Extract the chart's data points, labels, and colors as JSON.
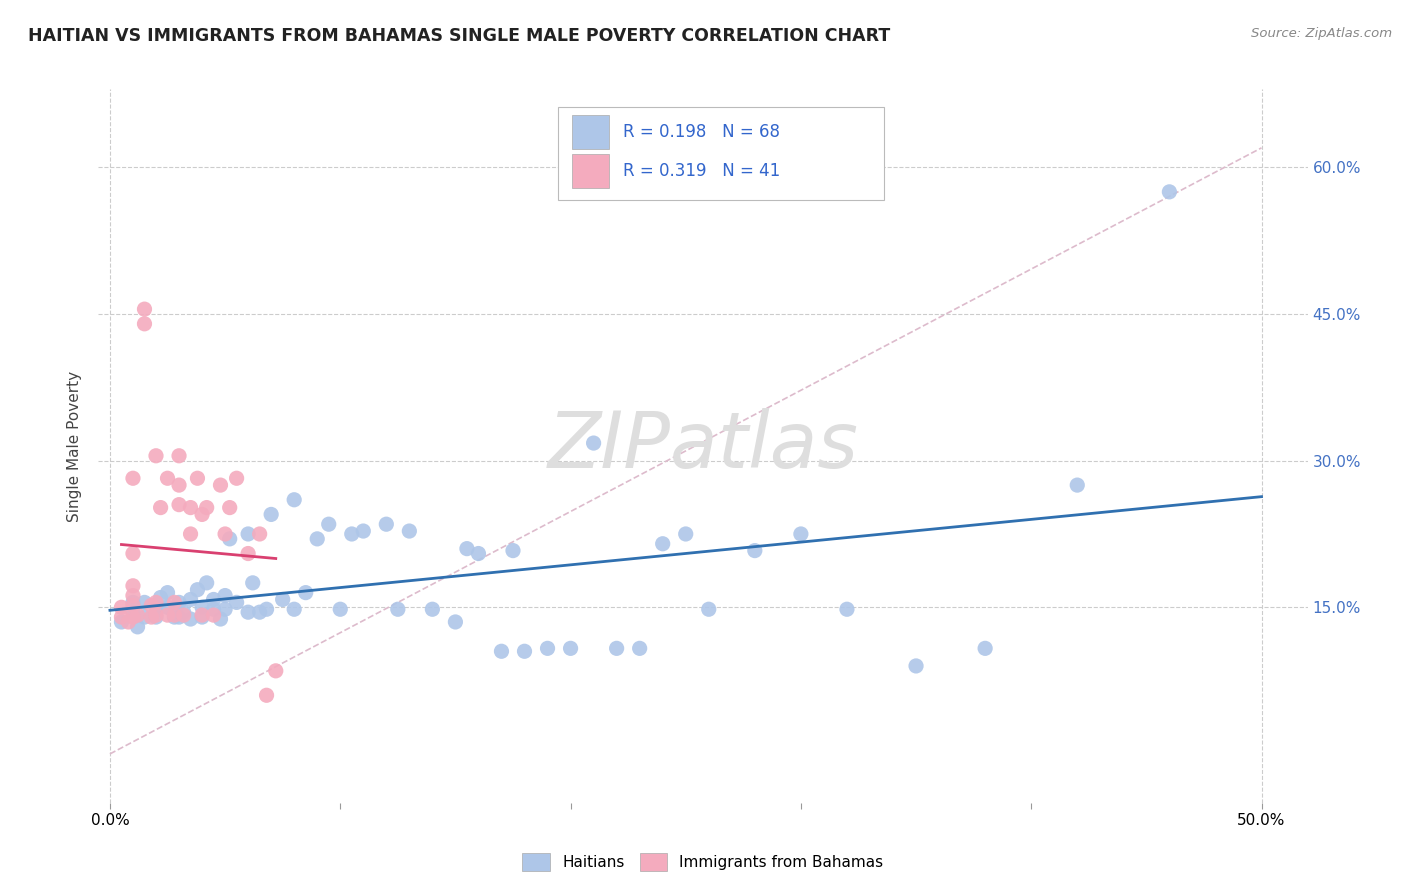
{
  "title": "HAITIAN VS IMMIGRANTS FROM BAHAMAS SINGLE MALE POVERTY CORRELATION CHART",
  "source": "Source: ZipAtlas.com",
  "ylabel": "Single Male Poverty",
  "xlim": [
    -0.005,
    0.52
  ],
  "ylim": [
    -0.05,
    0.68
  ],
  "ytick_positions": [
    0.15,
    0.3,
    0.45,
    0.6
  ],
  "yticklabels": [
    "15.0%",
    "30.0%",
    "45.0%",
    "60.0%"
  ],
  "xtick_positions": [
    0.0,
    0.1,
    0.2,
    0.3,
    0.4,
    0.5
  ],
  "xticklabels_show": [
    "0.0%",
    "",
    "",
    "",
    "",
    "50.0%"
  ],
  "R_blue": 0.198,
  "N_blue": 68,
  "R_pink": 0.319,
  "N_pink": 41,
  "blue_color": "#AEC6E8",
  "pink_color": "#F4ABBE",
  "line_blue": "#3070B0",
  "line_pink": "#D94070",
  "diag_color": "#DDBBCC",
  "grid_color": "#CCCCCC",
  "watermark_color": "#DDDDDD",
  "legend_entries": [
    "Haitians",
    "Immigrants from Bahamas"
  ],
  "blue_scatter_x": [
    0.005,
    0.01,
    0.01,
    0.012,
    0.015,
    0.015,
    0.02,
    0.02,
    0.022,
    0.025,
    0.025,
    0.028,
    0.03,
    0.03,
    0.032,
    0.035,
    0.035,
    0.038,
    0.04,
    0.04,
    0.042,
    0.045,
    0.045,
    0.048,
    0.05,
    0.05,
    0.052,
    0.055,
    0.06,
    0.06,
    0.062,
    0.065,
    0.068,
    0.07,
    0.075,
    0.08,
    0.08,
    0.085,
    0.09,
    0.095,
    0.1,
    0.105,
    0.11,
    0.12,
    0.125,
    0.13,
    0.14,
    0.15,
    0.155,
    0.16,
    0.17,
    0.175,
    0.18,
    0.19,
    0.2,
    0.21,
    0.22,
    0.23,
    0.24,
    0.25,
    0.26,
    0.28,
    0.3,
    0.32,
    0.35,
    0.38,
    0.42,
    0.46
  ],
  "blue_scatter_y": [
    0.135,
    0.145,
    0.155,
    0.13,
    0.14,
    0.155,
    0.14,
    0.15,
    0.16,
    0.15,
    0.165,
    0.14,
    0.14,
    0.155,
    0.145,
    0.138,
    0.158,
    0.168,
    0.14,
    0.15,
    0.175,
    0.148,
    0.158,
    0.138,
    0.148,
    0.162,
    0.22,
    0.155,
    0.145,
    0.225,
    0.175,
    0.145,
    0.148,
    0.245,
    0.158,
    0.148,
    0.26,
    0.165,
    0.22,
    0.235,
    0.148,
    0.225,
    0.228,
    0.235,
    0.148,
    0.228,
    0.148,
    0.135,
    0.21,
    0.205,
    0.105,
    0.208,
    0.105,
    0.108,
    0.108,
    0.318,
    0.108,
    0.108,
    0.215,
    0.225,
    0.148,
    0.208,
    0.225,
    0.148,
    0.09,
    0.108,
    0.275,
    0.575
  ],
  "pink_scatter_x": [
    0.005,
    0.005,
    0.008,
    0.01,
    0.01,
    0.01,
    0.01,
    0.01,
    0.01,
    0.012,
    0.015,
    0.015,
    0.018,
    0.018,
    0.02,
    0.02,
    0.02,
    0.022,
    0.025,
    0.025,
    0.028,
    0.028,
    0.03,
    0.03,
    0.03,
    0.032,
    0.035,
    0.035,
    0.038,
    0.04,
    0.04,
    0.042,
    0.045,
    0.048,
    0.05,
    0.052,
    0.055,
    0.06,
    0.065,
    0.068,
    0.072
  ],
  "pink_scatter_y": [
    0.14,
    0.15,
    0.135,
    0.14,
    0.152,
    0.162,
    0.172,
    0.205,
    0.282,
    0.142,
    0.44,
    0.455,
    0.14,
    0.152,
    0.142,
    0.155,
    0.305,
    0.252,
    0.282,
    0.142,
    0.142,
    0.155,
    0.255,
    0.275,
    0.305,
    0.142,
    0.225,
    0.252,
    0.282,
    0.142,
    0.245,
    0.252,
    0.142,
    0.275,
    0.225,
    0.252,
    0.282,
    0.205,
    0.225,
    0.06,
    0.085
  ]
}
